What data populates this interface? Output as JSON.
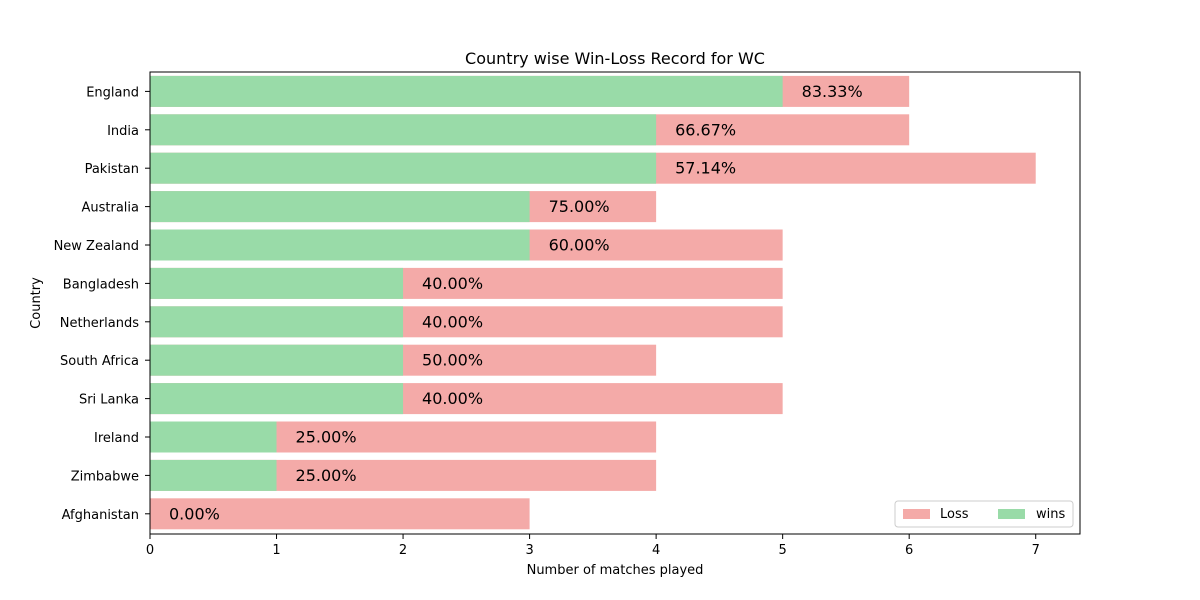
{
  "chart_data": {
    "type": "bar",
    "orientation": "horizontal",
    "stacking": "overlay",
    "title": "Country wise Win-Loss Record for WC",
    "xlabel": "Number of matches played",
    "ylabel": "Country",
    "xlim": [
      0,
      7.35
    ],
    "xticks": [
      0,
      1,
      2,
      3,
      4,
      5,
      6,
      7
    ],
    "categories": [
      "England",
      "India",
      "Pakistan",
      "Australia",
      "New Zealand",
      "Bangladesh",
      "Netherlands",
      "South Africa",
      "Sri Lanka",
      "Ireland",
      "Zimbabwe",
      "Afghanistan"
    ],
    "series": [
      {
        "name": "Loss",
        "color": "#f4aaa8",
        "values": [
          6,
          6,
          7,
          4,
          5,
          5,
          5,
          4,
          5,
          4,
          4,
          3
        ]
      },
      {
        "name": "wins",
        "color": "#99dba8",
        "values": [
          5,
          4,
          4,
          3,
          3,
          2,
          2,
          2,
          2,
          1,
          1,
          0
        ]
      }
    ],
    "annotations": [
      "83.33%",
      "66.67%",
      "57.14%",
      "75.00%",
      "60.00%",
      "40.00%",
      "40.00%",
      "50.00%",
      "40.00%",
      "25.00%",
      "25.00%",
      "0.00%"
    ],
    "legend": {
      "placement": "lower-right",
      "entries": [
        "Loss",
        "wins"
      ]
    },
    "grid": false
  }
}
